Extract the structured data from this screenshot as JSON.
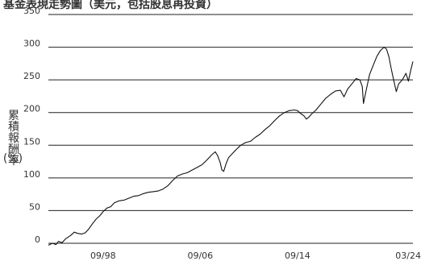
{
  "chart_data": {
    "type": "line",
    "title": "基金表現走勢圖（美元，包括股息再投資）",
    "ylabel_chars": [
      "累",
      "積",
      "報",
      "酬",
      "率"
    ],
    "ylabel_unit": "(%)",
    "ylim": [
      0,
      350
    ],
    "y_ticks": [
      "0",
      "50",
      "100",
      "150",
      "200",
      "250",
      "300",
      "350"
    ],
    "y_tick_values": [
      0,
      50,
      100,
      150,
      200,
      250,
      300,
      350
    ],
    "x_ticks": [
      "09/98",
      "09/06",
      "09/14",
      "03/24"
    ],
    "x_tick_values": [
      1998.67,
      2006.67,
      2014.67,
      2024.17
    ],
    "xlim": [
      1994.17,
      2024.17
    ],
    "grid": "horizontal",
    "series": [
      {
        "points": [
          [
            1994.17,
            -3
          ],
          [
            1994.5,
            0
          ],
          [
            1994.8,
            -2
          ],
          [
            1995.0,
            3
          ],
          [
            1995.3,
            1
          ],
          [
            1995.6,
            7
          ],
          [
            1996.0,
            12
          ],
          [
            1996.3,
            17
          ],
          [
            1996.6,
            15
          ],
          [
            1996.9,
            14
          ],
          [
            1997.2,
            16
          ],
          [
            1997.5,
            22
          ],
          [
            1997.8,
            30
          ],
          [
            1998.1,
            37
          ],
          [
            1998.4,
            42
          ],
          [
            1998.7,
            49
          ],
          [
            1999.0,
            54
          ],
          [
            1999.3,
            56
          ],
          [
            1999.6,
            62
          ],
          [
            2000.0,
            65
          ],
          [
            2000.4,
            66
          ],
          [
            2000.8,
            69
          ],
          [
            2001.2,
            72
          ],
          [
            2001.6,
            73
          ],
          [
            2002.0,
            76
          ],
          [
            2002.4,
            78
          ],
          [
            2002.8,
            79
          ],
          [
            2003.2,
            80
          ],
          [
            2003.6,
            83
          ],
          [
            2004.0,
            88
          ],
          [
            2004.4,
            96
          ],
          [
            2004.8,
            103
          ],
          [
            2005.2,
            106
          ],
          [
            2005.6,
            108
          ],
          [
            2006.0,
            112
          ],
          [
            2006.4,
            116
          ],
          [
            2006.8,
            120
          ],
          [
            2007.2,
            127
          ],
          [
            2007.6,
            135
          ],
          [
            2007.9,
            140
          ],
          [
            2008.1,
            134
          ],
          [
            2008.3,
            124
          ],
          [
            2008.45,
            112
          ],
          [
            2008.6,
            110
          ],
          [
            2008.8,
            122
          ],
          [
            2009.0,
            131
          ],
          [
            2009.3,
            137
          ],
          [
            2009.6,
            143
          ],
          [
            2010.0,
            150
          ],
          [
            2010.4,
            154
          ],
          [
            2010.8,
            156
          ],
          [
            2011.2,
            162
          ],
          [
            2011.6,
            167
          ],
          [
            2012.0,
            174
          ],
          [
            2012.4,
            180
          ],
          [
            2012.8,
            188
          ],
          [
            2013.2,
            195
          ],
          [
            2013.6,
            200
          ],
          [
            2014.0,
            203
          ],
          [
            2014.4,
            204
          ],
          [
            2014.67,
            203
          ],
          [
            2014.9,
            199
          ],
          [
            2015.2,
            195
          ],
          [
            2015.4,
            190
          ],
          [
            2015.6,
            193
          ],
          [
            2015.9,
            199
          ],
          [
            2016.2,
            204
          ],
          [
            2016.6,
            213
          ],
          [
            2017.0,
            222
          ],
          [
            2017.4,
            228
          ],
          [
            2017.8,
            233
          ],
          [
            2018.2,
            234
          ],
          [
            2018.5,
            224
          ],
          [
            2018.8,
            236
          ],
          [
            2019.2,
            245
          ],
          [
            2019.5,
            252
          ],
          [
            2019.8,
            250
          ],
          [
            2020.0,
            240
          ],
          [
            2020.1,
            214
          ],
          [
            2020.3,
            232
          ],
          [
            2020.6,
            258
          ],
          [
            2020.9,
            272
          ],
          [
            2021.2,
            286
          ],
          [
            2021.5,
            295
          ],
          [
            2021.8,
            300
          ],
          [
            2022.0,
            297
          ],
          [
            2022.2,
            285
          ],
          [
            2022.4,
            266
          ],
          [
            2022.6,
            249
          ],
          [
            2022.8,
            232
          ],
          [
            2023.0,
            244
          ],
          [
            2023.3,
            250
          ],
          [
            2023.6,
            260
          ],
          [
            2023.8,
            248
          ],
          [
            2024.0,
            265
          ],
          [
            2024.17,
            278
          ]
        ]
      }
    ]
  }
}
